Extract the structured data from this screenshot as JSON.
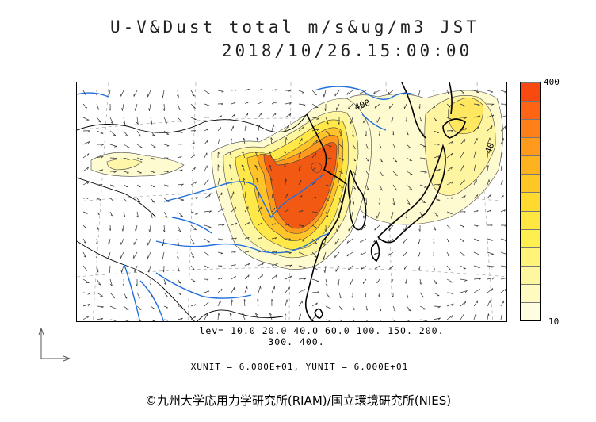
{
  "header": {
    "title_line1": "U-V&Dust total m/s&ug/m3 JST",
    "title_line2": "2018/10/26.15:00:00"
  },
  "legend": {
    "levels_line1": "lev= 10.0 20.0 40.0 60.0 100. 150. 200.",
    "levels_line2": "300. 400.",
    "units": "XUNIT = 6.000E+01, YUNIT = 6.000E+01"
  },
  "colorbar": {
    "max_label": "400",
    "min_label": "10",
    "colors": [
      "#fffde0",
      "#fffac0",
      "#fff7a0",
      "#fff37a",
      "#ffee50",
      "#ffe640",
      "#ffd830",
      "#ffc726",
      "#ffb220",
      "#ff9a1c",
      "#ff7f18",
      "#ff6414",
      "#f84a10"
    ]
  },
  "map_labels": {
    "contour_label_a": "400",
    "contour_label_b": "40"
  },
  "credit": "©九州大学応用力学研究所(RIAM)/国立環境研究所(NIES)",
  "colors": {
    "river": "#1f6fe0",
    "coast": "#000000",
    "dust_low": "#fffbd0",
    "dust_mid": "#ffe040",
    "dust_high": "#f05a14"
  }
}
